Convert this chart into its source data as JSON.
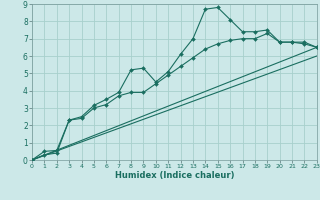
{
  "xlabel": "Humidex (Indice chaleur)",
  "bg_color": "#cce8e8",
  "grid_color": "#a8d0cc",
  "line_color": "#1a6e60",
  "xlim": [
    0,
    23
  ],
  "ylim": [
    0,
    9
  ],
  "xticks": [
    0,
    1,
    2,
    3,
    4,
    5,
    6,
    7,
    8,
    9,
    10,
    11,
    12,
    13,
    14,
    15,
    16,
    17,
    18,
    19,
    20,
    21,
    22,
    23
  ],
  "yticks": [
    0,
    1,
    2,
    3,
    4,
    5,
    6,
    7,
    8,
    9
  ],
  "line1_x": [
    0,
    1,
    2,
    3,
    4,
    5,
    6,
    7,
    8,
    9,
    10,
    11,
    12,
    13,
    14,
    15,
    16,
    17,
    18,
    19,
    20,
    21,
    22,
    23
  ],
  "line1_y": [
    0.0,
    0.5,
    0.55,
    2.3,
    2.5,
    3.15,
    3.5,
    3.9,
    5.2,
    5.3,
    4.5,
    5.1,
    6.1,
    7.0,
    8.7,
    8.8,
    8.1,
    7.4,
    7.4,
    7.5,
    6.8,
    6.8,
    6.8,
    6.5
  ],
  "line2_x": [
    0,
    1,
    2,
    3,
    4,
    5,
    6,
    7,
    8,
    9,
    10,
    11,
    12,
    13,
    14,
    15,
    16,
    17,
    18,
    19,
    20,
    21,
    22,
    23
  ],
  "line2_y": [
    0.0,
    0.3,
    0.4,
    2.3,
    2.4,
    3.0,
    3.2,
    3.7,
    3.9,
    3.9,
    4.4,
    4.9,
    5.4,
    5.9,
    6.4,
    6.7,
    6.9,
    7.0,
    7.0,
    7.3,
    6.8,
    6.8,
    6.7,
    6.5
  ],
  "line3_x": [
    0,
    23
  ],
  "line3_y": [
    0.0,
    6.5
  ],
  "line4_x": [
    0,
    23
  ],
  "line4_y": [
    0.0,
    6.0
  ]
}
